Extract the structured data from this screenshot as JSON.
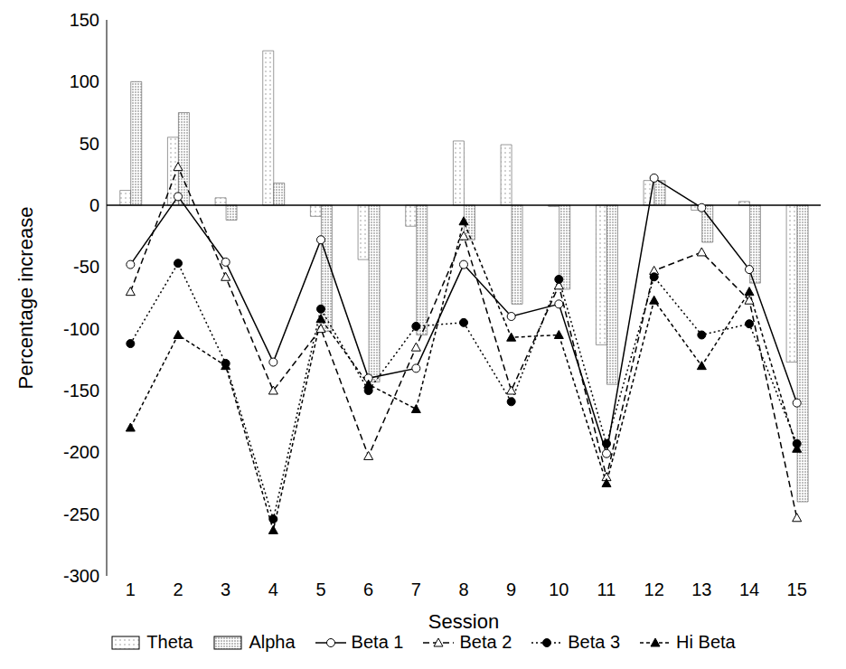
{
  "chart_data": {
    "type": "bar_line",
    "x_label": "Session",
    "y_label": "Percentage increase",
    "categories": [
      "1",
      "2",
      "3",
      "4",
      "5",
      "6",
      "7",
      "8",
      "9",
      "10",
      "11",
      "12",
      "13",
      "14",
      "15"
    ],
    "series": [
      {
        "name": "Theta",
        "type": "bar",
        "color": "#9a9a9a",
        "values": [
          12,
          55,
          6,
          125,
          -9,
          -44,
          -17,
          52,
          49,
          -1,
          -113,
          20,
          -4,
          3,
          -127
        ]
      },
      {
        "name": "Alpha",
        "type": "bar",
        "color": "#6e6e6e",
        "values": [
          100,
          75,
          -12,
          18,
          -102,
          -143,
          -105,
          -28,
          -80,
          -68,
          -145,
          20,
          -30,
          -63,
          -240
        ]
      },
      {
        "name": "Beta 1",
        "type": "line",
        "color": "#000000",
        "marker": "circle-open",
        "line_style": "solid",
        "values": [
          -48,
          7,
          -46,
          -127,
          -28,
          -140,
          -132,
          -48,
          -90,
          -80,
          -201,
          22,
          -2,
          -52,
          -160
        ]
      },
      {
        "name": "Beta 2",
        "type": "line",
        "color": "#000000",
        "marker": "triangle-open",
        "line_style": "dashed",
        "values": [
          -70,
          31,
          -58,
          -150,
          -100,
          -203,
          -115,
          -25,
          -150,
          -65,
          -220,
          -53,
          -38,
          -77,
          -253
        ]
      },
      {
        "name": "Beta 3",
        "type": "line",
        "color": "#000000",
        "marker": "circle",
        "line_style": "dotted",
        "values": [
          -112,
          -47,
          -128,
          -254,
          -84,
          -150,
          -98,
          -95,
          -159,
          -60,
          -193,
          -58,
          -105,
          -96,
          -193
        ]
      },
      {
        "name": "Hi Beta",
        "type": "line",
        "color": "#000000",
        "marker": "triangle",
        "line_style": "densely_dashed",
        "values": [
          -180,
          -105,
          -130,
          -263,
          -92,
          -145,
          -165,
          -13,
          -107,
          -105,
          -225,
          -77,
          -130,
          -70,
          -197
        ]
      }
    ],
    "ylim": [
      -300,
      150
    ],
    "yticks": [
      -300,
      -250,
      -200,
      -150,
      -100,
      -50,
      0,
      50,
      100,
      150
    ],
    "grid": false,
    "legend": "bottom"
  }
}
